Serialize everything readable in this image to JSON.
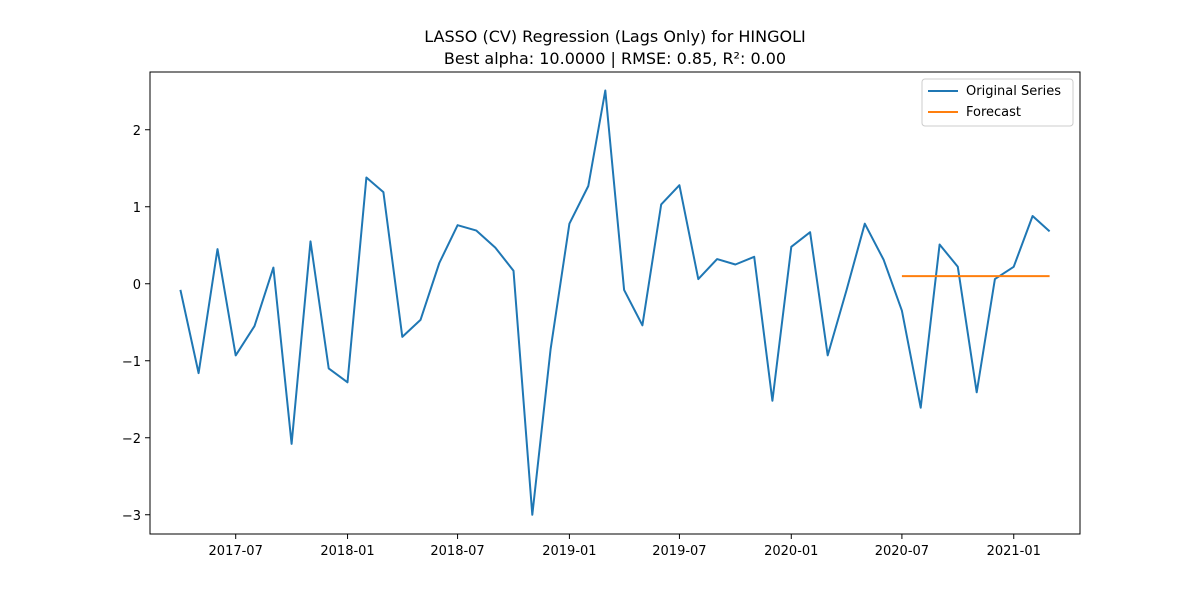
{
  "chart_data": {
    "type": "line",
    "title": "LASSO (CV) Regression (Lags Only) for HINGOLI",
    "subtitle": "Best alpha: 10.0000 | RMSE: 0.85, R²: 0.00",
    "xlabel": "",
    "ylabel": "",
    "xlim": [
      "2017-02-10",
      "2021-04-20"
    ],
    "ylim": [
      -3.25,
      2.75
    ],
    "x_ticks": [
      "2017-07",
      "2018-01",
      "2018-07",
      "2019-01",
      "2019-07",
      "2020-01",
      "2020-07",
      "2021-01"
    ],
    "y_ticks": [
      2,
      1,
      0,
      -1,
      -2,
      -3
    ],
    "y_tick_labels": [
      "2",
      "1",
      "0",
      "−1",
      "−2",
      "−3"
    ],
    "legend_position": "top-right",
    "grid": false,
    "series": [
      {
        "name": "Original Series",
        "color": "#1f77b4",
        "x": [
          "2017-04",
          "2017-05",
          "2017-06",
          "2017-07",
          "2017-08",
          "2017-09",
          "2017-10",
          "2017-11",
          "2017-12",
          "2018-01",
          "2018-02",
          "2018-03",
          "2018-04",
          "2018-05",
          "2018-06",
          "2018-07",
          "2018-08",
          "2018-09",
          "2018-10",
          "2018-11",
          "2018-12",
          "2019-01",
          "2019-02",
          "2019-03",
          "2019-04",
          "2019-05",
          "2019-06",
          "2019-07",
          "2019-08",
          "2019-09",
          "2019-10",
          "2019-11",
          "2019-12",
          "2020-01",
          "2020-02",
          "2020-03",
          "2020-04",
          "2020-05",
          "2020-06",
          "2020-07",
          "2020-08",
          "2020-09",
          "2020-10",
          "2020-11",
          "2020-12",
          "2021-01",
          "2021-02",
          "2021-03"
        ],
        "values": [
          -0.08,
          -1.16,
          0.45,
          -0.93,
          -0.55,
          0.21,
          -2.08,
          0.55,
          -1.1,
          -1.28,
          1.38,
          1.19,
          -0.69,
          -0.47,
          0.27,
          0.76,
          0.69,
          0.47,
          0.17,
          -3.0,
          -0.85,
          0.78,
          1.27,
          2.51,
          -0.08,
          -0.54,
          1.03,
          1.28,
          0.06,
          0.32,
          0.25,
          0.35,
          -1.52,
          0.48,
          0.67,
          -0.93,
          -0.08,
          0.78,
          0.31,
          -0.35,
          -1.61,
          0.51,
          0.22,
          -1.41,
          0.06,
          0.22,
          0.88,
          0.68
        ]
      },
      {
        "name": "Forecast",
        "color": "#ff7f0e",
        "x": [
          "2020-07",
          "2020-08",
          "2020-09",
          "2020-10",
          "2020-11",
          "2020-12",
          "2021-01",
          "2021-02",
          "2021-03"
        ],
        "values": [
          0.1,
          0.1,
          0.1,
          0.1,
          0.1,
          0.1,
          0.1,
          0.1,
          0.1
        ]
      }
    ]
  }
}
